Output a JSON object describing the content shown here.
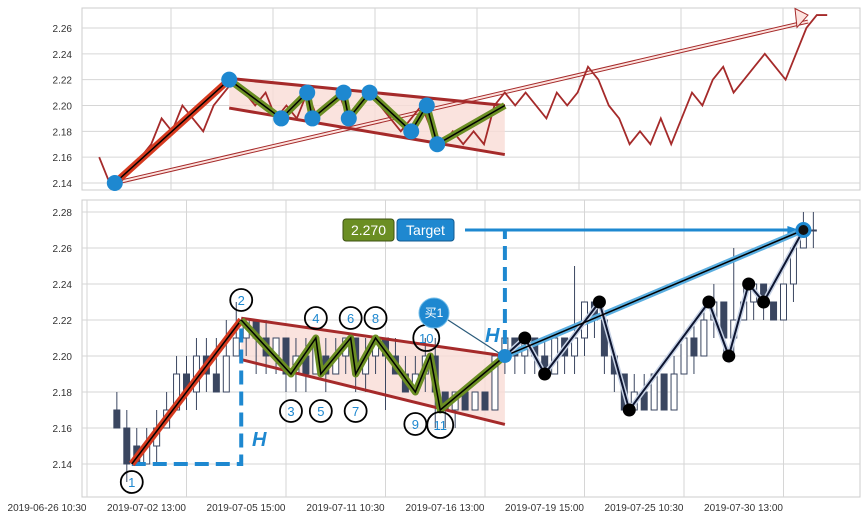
{
  "chart_data": {
    "type": "candlestick",
    "x_unit": "bar index",
    "x_ticks": [
      {
        "index": 0,
        "label": "2019-06-26 10:30"
      },
      {
        "index": 20,
        "label": "2019-07-02 13:00"
      },
      {
        "index": 40,
        "label": "2019-07-05 15:00"
      },
      {
        "index": 60,
        "label": "2019-07-11 10:30"
      },
      {
        "index": 80,
        "label": "2019-07-16 13:00"
      },
      {
        "index": 100,
        "label": "2019-07-19 15:00"
      },
      {
        "index": 120,
        "label": "2019-07-25 10:30"
      },
      {
        "index": 140,
        "label": "2019-07-30 13:00"
      }
    ],
    "top_panel": {
      "type": "line",
      "ylim": [
        2.13,
        2.275
      ],
      "y_ticks": [
        "2.14",
        "2.16",
        "2.18",
        "2.20",
        "2.22",
        "2.24",
        "2.26"
      ],
      "series": "candle closes",
      "grid": true
    },
    "bottom_panel": {
      "type": "candlestick",
      "ylim": [
        2.12,
        2.285
      ],
      "y_ticks": [
        "2.14",
        "2.16",
        "2.18",
        "2.20",
        "2.22",
        "2.24",
        "2.26",
        "2.28"
      ],
      "grid": true
    },
    "candles_ohlc": [
      [
        6,
        2.17,
        2.18,
        2.16,
        2.16
      ],
      [
        8,
        2.16,
        2.17,
        2.13,
        2.14
      ],
      [
        10,
        2.15,
        2.16,
        2.14,
        2.14
      ],
      [
        12,
        2.14,
        2.16,
        2.14,
        2.15
      ],
      [
        14,
        2.15,
        2.17,
        2.14,
        2.16
      ],
      [
        16,
        2.16,
        2.18,
        2.16,
        2.17
      ],
      [
        18,
        2.17,
        2.2,
        2.17,
        2.19
      ],
      [
        20,
        2.19,
        2.2,
        2.17,
        2.18
      ],
      [
        22,
        2.18,
        2.21,
        2.17,
        2.2
      ],
      [
        24,
        2.2,
        2.21,
        2.18,
        2.19
      ],
      [
        26,
        2.19,
        2.21,
        2.18,
        2.18
      ],
      [
        28,
        2.18,
        2.22,
        2.18,
        2.2
      ],
      [
        30,
        2.2,
        2.23,
        2.2,
        2.21
      ],
      [
        32,
        2.21,
        2.22,
        2.2,
        2.22
      ],
      [
        34,
        2.22,
        2.22,
        2.19,
        2.21
      ],
      [
        36,
        2.21,
        2.22,
        2.19,
        2.2
      ],
      [
        38,
        2.2,
        2.21,
        2.19,
        2.21
      ],
      [
        40,
        2.21,
        2.21,
        2.18,
        2.19
      ],
      [
        42,
        2.19,
        2.21,
        2.18,
        2.2
      ],
      [
        44,
        2.2,
        2.21,
        2.18,
        2.19
      ],
      [
        46,
        2.19,
        2.21,
        2.19,
        2.21
      ],
      [
        48,
        2.2,
        2.21,
        2.18,
        2.19
      ],
      [
        50,
        2.19,
        2.21,
        2.19,
        2.2
      ],
      [
        52,
        2.2,
        2.21,
        2.19,
        2.21
      ],
      [
        54,
        2.21,
        2.21,
        2.18,
        2.19
      ],
      [
        56,
        2.19,
        2.21,
        2.18,
        2.2
      ],
      [
        58,
        2.2,
        2.21,
        2.19,
        2.21
      ],
      [
        60,
        2.21,
        2.21,
        2.17,
        2.2
      ],
      [
        62,
        2.2,
        2.21,
        2.19,
        2.19
      ],
      [
        64,
        2.19,
        2.2,
        2.18,
        2.18
      ],
      [
        66,
        2.18,
        2.2,
        2.18,
        2.19
      ],
      [
        68,
        2.19,
        2.21,
        2.18,
        2.2
      ],
      [
        70,
        2.2,
        2.21,
        2.16,
        2.18
      ],
      [
        72,
        2.18,
        2.18,
        2.16,
        2.17
      ],
      [
        74,
        2.17,
        2.18,
        2.16,
        2.18
      ],
      [
        76,
        2.18,
        2.18,
        2.17,
        2.17
      ],
      [
        78,
        2.17,
        2.18,
        2.17,
        2.18
      ],
      [
        80,
        2.18,
        2.18,
        2.17,
        2.17
      ],
      [
        82,
        2.17,
        2.2,
        2.17,
        2.2
      ],
      [
        84,
        2.2,
        2.21,
        2.19,
        2.21
      ],
      [
        86,
        2.21,
        2.21,
        2.19,
        2.2
      ],
      [
        88,
        2.2,
        2.21,
        2.19,
        2.21
      ],
      [
        90,
        2.21,
        2.21,
        2.19,
        2.2
      ],
      [
        92,
        2.2,
        2.21,
        2.19,
        2.19
      ],
      [
        94,
        2.19,
        2.21,
        2.19,
        2.21
      ],
      [
        96,
        2.21,
        2.21,
        2.19,
        2.2
      ],
      [
        98,
        2.2,
        2.25,
        2.19,
        2.21
      ],
      [
        100,
        2.21,
        2.23,
        2.2,
        2.23
      ],
      [
        102,
        2.23,
        2.23,
        2.21,
        2.22
      ],
      [
        104,
        2.22,
        2.22,
        2.19,
        2.2
      ],
      [
        106,
        2.2,
        2.2,
        2.18,
        2.19
      ],
      [
        108,
        2.19,
        2.19,
        2.17,
        2.17
      ],
      [
        110,
        2.17,
        2.19,
        2.17,
        2.18
      ],
      [
        112,
        2.18,
        2.19,
        2.17,
        2.17
      ],
      [
        114,
        2.17,
        2.19,
        2.17,
        2.19
      ],
      [
        116,
        2.19,
        2.19,
        2.17,
        2.17
      ],
      [
        118,
        2.17,
        2.2,
        2.17,
        2.19
      ],
      [
        120,
        2.19,
        2.21,
        2.19,
        2.21
      ],
      [
        122,
        2.21,
        2.22,
        2.19,
        2.2
      ],
      [
        124,
        2.2,
        2.23,
        2.2,
        2.22
      ],
      [
        126,
        2.22,
        2.24,
        2.21,
        2.23
      ],
      [
        128,
        2.23,
        2.23,
        2.2,
        2.21
      ],
      [
        130,
        2.21,
        2.26,
        2.2,
        2.22
      ],
      [
        132,
        2.22,
        2.24,
        2.22,
        2.23
      ],
      [
        134,
        2.23,
        2.24,
        2.22,
        2.24
      ],
      [
        136,
        2.24,
        2.24,
        2.22,
        2.23
      ],
      [
        138,
        2.23,
        2.23,
        2.22,
        2.22
      ],
      [
        140,
        2.22,
        2.24,
        2.22,
        2.24
      ],
      [
        142,
        2.24,
        2.26,
        2.23,
        2.26
      ],
      [
        144,
        2.26,
        2.28,
        2.26,
        2.27
      ],
      [
        146,
        2.27,
        2.28,
        2.26,
        2.27
      ]
    ],
    "pattern_pivots": [
      {
        "label": "1",
        "index": 9,
        "price": 2.14
      },
      {
        "label": "2",
        "index": 31,
        "price": 2.22
      },
      {
        "label": "3",
        "index": 41,
        "price": 2.19
      },
      {
        "label": "4",
        "index": 46,
        "price": 2.21
      },
      {
        "label": "5",
        "index": 47,
        "price": 2.19
      },
      {
        "label": "6",
        "index": 53,
        "price": 2.21
      },
      {
        "label": "7",
        "index": 54,
        "price": 2.19
      },
      {
        "label": "8",
        "index": 58,
        "price": 2.21
      },
      {
        "label": "9",
        "index": 66,
        "price": 2.18
      },
      {
        "label": "10",
        "index": 69,
        "price": 2.2
      },
      {
        "label": "11",
        "index": 71,
        "price": 2.17
      }
    ],
    "breakout": {
      "index": 84,
      "price": 2.2,
      "label": "买1"
    },
    "channel": {
      "upper": [
        [
          31,
          2.221
        ],
        [
          84,
          2.2
        ]
      ],
      "lower": [
        [
          31,
          2.198
        ],
        [
          84,
          2.162
        ]
      ]
    },
    "after_breakout_pivots": [
      [
        88,
        2.21
      ],
      [
        92,
        2.19
      ],
      [
        103,
        2.23
      ],
      [
        109,
        2.17
      ],
      [
        125,
        2.23
      ],
      [
        129,
        2.2
      ],
      [
        133,
        2.24
      ],
      [
        136,
        2.23
      ],
      [
        144,
        2.27
      ]
    ],
    "height_label": "H",
    "target": {
      "price": 2.27,
      "value_label": "2.270",
      "label": "Target",
      "index": 144
    },
    "colors": {
      "flagpole": "#d63a1f",
      "zigzag": "#6b8e23",
      "channel": "#a52a2a",
      "channel_fill": "#f9dcd6",
      "pivot": "#1e88d0",
      "price_line": "#a52a2a",
      "candle": "#3a4660",
      "target_line": "#1e88d0"
    }
  }
}
